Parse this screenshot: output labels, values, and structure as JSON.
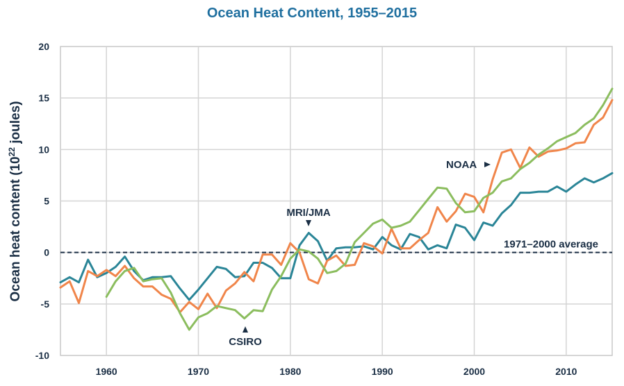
{
  "chart_data": {
    "type": "line",
    "title": "Ocean Heat Content, 1955–2015",
    "ylabel_main": "Ocean heat content (10",
    "ylabel_sup": "22",
    "ylabel_end": " joules)",
    "xlim": [
      1955,
      2015
    ],
    "ylim": [
      -10,
      20
    ],
    "x_ticks": [
      1960,
      1970,
      1980,
      1990,
      2000,
      2010
    ],
    "y_ticks": [
      -10,
      -5,
      0,
      5,
      10,
      15,
      20
    ],
    "grid": true,
    "reference_line": {
      "value": 0,
      "label": "1971–2000 average"
    },
    "annotations": {
      "mri": "MRI/JMA",
      "csiro": "CSIRO",
      "noaa": "NOAA"
    },
    "series": [
      {
        "name": "MRI/JMA",
        "color": "#2a8597",
        "x": [
          1955,
          1956,
          1957,
          1958,
          1959,
          1960,
          1961,
          1962,
          1963,
          1964,
          1965,
          1966,
          1967,
          1968,
          1969,
          1970,
          1971,
          1972,
          1973,
          1974,
          1975,
          1976,
          1977,
          1978,
          1979,
          1980,
          1981,
          1982,
          1983,
          1984,
          1985,
          1986,
          1987,
          1988,
          1989,
          1990,
          1991,
          1992,
          1993,
          1994,
          1995,
          1996,
          1997,
          1998,
          1999,
          2000,
          2001,
          2002,
          2003,
          2004,
          2005,
          2006,
          2007,
          2008,
          2009,
          2010,
          2011,
          2012,
          2013,
          2014,
          2015
        ],
        "values": [
          -2.9,
          -2.4,
          -2.9,
          -0.7,
          -2.4,
          -2.0,
          -1.4,
          -0.4,
          -1.8,
          -2.7,
          -2.4,
          -2.4,
          -2.3,
          -3.5,
          -4.6,
          -3.6,
          -2.5,
          -1.4,
          -1.6,
          -2.4,
          -2.3,
          -1.0,
          -1.0,
          -1.5,
          -2.5,
          -2.5,
          0.7,
          1.9,
          1.1,
          -0.8,
          0.4,
          0.5,
          0.5,
          0.6,
          0.3,
          1.5,
          0.7,
          0.3,
          1.8,
          1.5,
          0.3,
          0.7,
          0.4,
          2.7,
          2.4,
          1.2,
          2.9,
          2.6,
          3.8,
          4.6,
          5.8,
          5.8,
          5.9,
          5.9,
          6.4,
          5.9,
          6.6,
          7.2,
          6.8,
          7.2,
          7.7
        ]
      },
      {
        "name": "NOAA",
        "color": "#f0854a",
        "x": [
          1955,
          1956,
          1957,
          1958,
          1959,
          1960,
          1961,
          1962,
          1963,
          1964,
          1965,
          1966,
          1967,
          1968,
          1969,
          1970,
          1971,
          1972,
          1973,
          1974,
          1975,
          1976,
          1977,
          1978,
          1979,
          1980,
          1981,
          1982,
          1983,
          1984,
          1985,
          1986,
          1987,
          1988,
          1989,
          1990,
          1991,
          1992,
          1993,
          1994,
          1995,
          1996,
          1997,
          1998,
          1999,
          2000,
          2001,
          2002,
          2003,
          2004,
          2005,
          2006,
          2007,
          2008,
          2009,
          2010,
          2011,
          2012,
          2013,
          2014,
          2015
        ],
        "values": [
          -3.4,
          -2.8,
          -4.9,
          -1.8,
          -2.3,
          -1.7,
          -2.3,
          -1.3,
          -2.5,
          -3.3,
          -3.3,
          -4.1,
          -4.5,
          -5.8,
          -4.8,
          -5.5,
          -4.0,
          -5.4,
          -3.7,
          -3.0,
          -1.9,
          -2.8,
          -0.2,
          -0.2,
          -1.2,
          0.9,
          0.0,
          -2.6,
          -3.0,
          -0.8,
          -0.3,
          -1.3,
          -1.2,
          0.9,
          0.6,
          -0.1,
          2.3,
          0.4,
          0.4,
          1.2,
          1.9,
          4.4,
          3.0,
          4.0,
          5.7,
          5.4,
          3.9,
          7.1,
          9.7,
          10.0,
          8.2,
          10.2,
          9.3,
          9.8,
          9.9,
          10.1,
          10.6,
          10.7,
          12.4,
          13.1,
          14.8
        ]
      },
      {
        "name": "CSIRO",
        "color": "#8bbd5e",
        "x": [
          1960,
          1961,
          1962,
          1963,
          1964,
          1965,
          1966,
          1967,
          1968,
          1969,
          1970,
          1971,
          1972,
          1973,
          1974,
          1975,
          1976,
          1977,
          1978,
          1979,
          1980,
          1981,
          1982,
          1983,
          1984,
          1985,
          1986,
          1987,
          1988,
          1989,
          1990,
          1991,
          1992,
          1993,
          1994,
          1995,
          1996,
          1997,
          1998,
          1999,
          2000,
          2001,
          2002,
          2003,
          2004,
          2005,
          2006,
          2007,
          2008,
          2009,
          2010,
          2011,
          2012,
          2013,
          2014,
          2015
        ],
        "values": [
          -4.3,
          -2.8,
          -1.8,
          -1.5,
          -2.8,
          -2.6,
          -2.5,
          -3.9,
          -5.9,
          -7.5,
          -6.3,
          -5.9,
          -5.2,
          -5.4,
          -5.6,
          -6.4,
          -5.6,
          -5.7,
          -3.6,
          -2.3,
          -0.6,
          0.3,
          0.1,
          -0.6,
          -2.0,
          -1.8,
          -1.1,
          1.0,
          1.9,
          2.8,
          3.2,
          2.4,
          2.6,
          3.0,
          4.1,
          5.2,
          6.3,
          6.2,
          4.8,
          3.9,
          4.0,
          5.3,
          5.8,
          6.9,
          7.2,
          8.1,
          8.7,
          9.5,
          10.1,
          10.8,
          11.2,
          11.6,
          12.4,
          13.0,
          14.3,
          15.9
        ]
      }
    ]
  }
}
